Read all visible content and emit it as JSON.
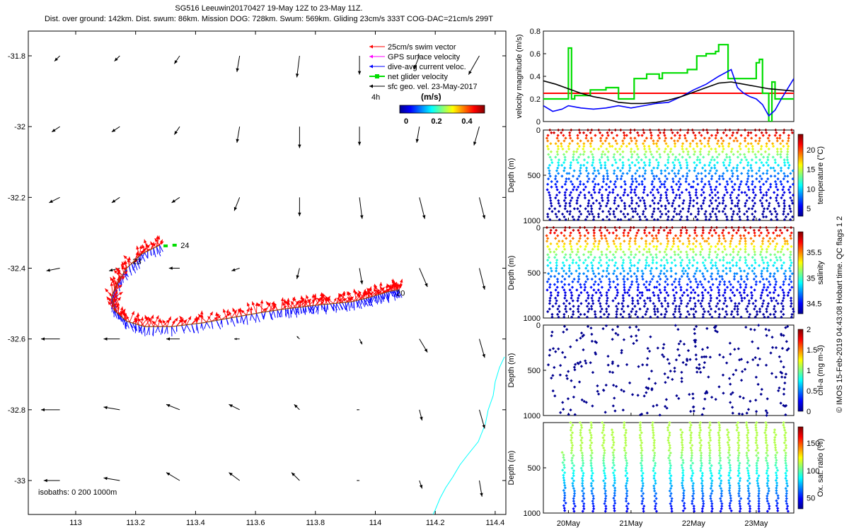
{
  "header": {
    "line1": "SG516 Leeuwin20170427 19-May 12Z to 23-May 11Z.",
    "line2": "Dist. over ground: 142km. Dist. swum: 86km. Mission DOG: 728km. Swum: 569km. Gliding 23cm/s 333T COG-DAC=21cm/s 299T"
  },
  "side_label": "© IMOS 15-Feb-2019 04:43:08 Hobart time. QC flags 1  2",
  "colors": {
    "swim": "#ff0000",
    "gps": "#ff00ff",
    "dac": "#0000ff",
    "netglider": "#00dd00",
    "geo": "#000000",
    "track": "#8b4513",
    "isobath": "#00ffff",
    "refline": "#ff0000"
  },
  "chart_data": [
    {
      "type": "vector-map",
      "title": "Glider track and current vectors",
      "xlabel": "",
      "ylabel": "",
      "xlim": [
        112.84,
        114.44
      ],
      "ylim": [
        -33.1,
        -31.72
      ],
      "xticks": [
        "113",
        "113.2",
        "113.4",
        "113.6",
        "113.8",
        "114",
        "114.2",
        "114.4"
      ],
      "yticks": [
        "-31.8",
        "-32",
        "-32.2",
        "-32.4",
        "-32.6",
        "-32.8",
        "-33"
      ],
      "legend": {
        "entries": [
          "25cm/s swim vector",
          "GPS surface velocity",
          "dive-avg current veloc.",
          "net glider velocity",
          "sfc geo. vel. 23-May-2017"
        ],
        "interval_label": "4h",
        "colorbar_title": "(m/s)",
        "colorbar_ticks": [
          "0",
          "0.2",
          "0.4"
        ]
      },
      "track_labels": [
        {
          "text": "24",
          "lon": 113.35,
          "lat": -32.335
        },
        {
          "text": "23",
          "lon": 113.19,
          "lat": -32.38
        },
        {
          "text": "20",
          "lon": 114.07,
          "lat": -32.47
        }
      ],
      "track": {
        "lon": [
          113.28,
          113.22,
          113.17,
          113.14,
          113.12,
          113.13,
          113.17,
          113.23,
          113.32,
          113.42,
          113.52,
          113.62,
          113.7,
          113.75,
          113.8,
          113.86,
          113.92,
          113.97,
          114.01,
          114.05,
          114.08
        ],
        "lat": [
          -32.335,
          -32.36,
          -32.4,
          -32.44,
          -32.48,
          -32.52,
          -32.55,
          -32.565,
          -32.565,
          -32.555,
          -32.54,
          -32.525,
          -32.515,
          -32.51,
          -32.505,
          -32.5,
          -32.495,
          -32.485,
          -32.475,
          -32.465,
          -32.46
        ]
      },
      "geo_vectors": {
        "lons": [
          112.94,
          113.14,
          113.34,
          113.54,
          113.74,
          113.94,
          114.14,
          114.34
        ],
        "lats": [
          -31.8,
          -32.0,
          -32.2,
          -32.4,
          -32.6,
          -32.8,
          -33.0
        ],
        "u": [
          [
            -0.02,
            -0.02,
            -0.02,
            -0.01,
            -0.01,
            0.0,
            -0.02,
            -0.04
          ],
          [
            -0.03,
            -0.03,
            -0.02,
            -0.01,
            0.0,
            0.0,
            -0.01,
            -0.02
          ],
          [
            -0.04,
            -0.03,
            -0.03,
            -0.02,
            0.0,
            0.01,
            0.02,
            0.02
          ],
          [
            -0.05,
            -0.04,
            -0.04,
            -0.03,
            -0.01,
            0.01,
            0.03,
            0.02
          ],
          [
            -0.07,
            -0.06,
            -0.05,
            -0.02,
            -0.01,
            0.01,
            0.03,
            0.02
          ],
          [
            -0.07,
            -0.06,
            -0.05,
            -0.04,
            -0.02,
            -0.01,
            0.01,
            0.02
          ],
          [
            -0.06,
            -0.06,
            -0.05,
            -0.04,
            -0.03,
            -0.01,
            0.01,
            0.01
          ]
        ],
        "v": [
          [
            -0.02,
            -0.02,
            -0.03,
            -0.06,
            -0.08,
            -0.07,
            -0.05,
            -0.07
          ],
          [
            -0.02,
            -0.02,
            -0.03,
            -0.06,
            -0.08,
            -0.07,
            -0.06,
            -0.07
          ],
          [
            -0.02,
            -0.02,
            -0.02,
            -0.05,
            -0.07,
            -0.08,
            -0.08,
            -0.08
          ],
          [
            -0.01,
            -0.01,
            0.0,
            -0.01,
            -0.04,
            -0.06,
            -0.07,
            -0.08
          ],
          [
            0.0,
            0.0,
            0.0,
            0.0,
            0.01,
            -0.02,
            -0.05,
            -0.07
          ],
          [
            0.0,
            0.01,
            0.02,
            0.02,
            0.02,
            0.0,
            -0.04,
            -0.07
          ],
          [
            0.0,
            0.01,
            0.03,
            0.03,
            0.03,
            0.0,
            -0.03,
            -0.06
          ]
        ]
      },
      "isobath_label": "isobaths: 0   200  1000m"
    },
    {
      "type": "line",
      "ylabel": "velocity magnitude (m/s)",
      "xlim": [
        19.6,
        23.6
      ],
      "ylim": [
        0,
        0.8
      ],
      "yticks": [
        "0",
        "0.2",
        "0.4",
        "0.6",
        "0.8"
      ],
      "reference_line": 0.25,
      "series": [
        {
          "name": "net glider velocity",
          "color": "#00dd00",
          "step": true,
          "x": [
            19.6,
            19.9,
            20.0,
            20.05,
            20.1,
            20.3,
            20.35,
            20.55,
            20.6,
            20.75,
            20.8,
            21.0,
            21.05,
            21.2,
            21.25,
            21.4,
            21.45,
            21.5,
            21.7,
            21.9,
            21.95,
            22.05,
            22.2,
            22.35,
            22.4,
            22.55,
            22.7,
            22.85,
            23.0,
            23.05,
            23.1,
            23.2,
            23.25,
            23.3,
            23.6
          ],
          "y": [
            0.2,
            0.2,
            0.65,
            0.2,
            0.23,
            0.23,
            0.28,
            0.28,
            0.3,
            0.3,
            0.2,
            0.2,
            0.38,
            0.38,
            0.42,
            0.42,
            0.38,
            0.43,
            0.43,
            0.46,
            0.46,
            0.58,
            0.6,
            0.62,
            0.68,
            0.38,
            0.38,
            0.38,
            0.52,
            0.55,
            0.25,
            0.0,
            0.35,
            0.2,
            0.2
          ]
        },
        {
          "name": "dive-avg current",
          "color": "#0000ff",
          "step": false,
          "x": [
            19.6,
            19.75,
            19.9,
            20.0,
            20.2,
            20.4,
            20.6,
            20.8,
            21.0,
            21.2,
            21.4,
            21.6,
            21.8,
            22.0,
            22.2,
            22.4,
            22.6,
            22.7,
            22.8,
            22.9,
            23.0,
            23.1,
            23.2,
            23.3,
            23.4,
            23.6
          ],
          "y": [
            0.14,
            0.09,
            0.11,
            0.14,
            0.12,
            0.11,
            0.12,
            0.14,
            0.12,
            0.14,
            0.16,
            0.17,
            0.22,
            0.28,
            0.33,
            0.4,
            0.46,
            0.3,
            0.25,
            0.22,
            0.2,
            0.15,
            0.05,
            0.1,
            0.2,
            0.38
          ]
        },
        {
          "name": "sfc geo. velocity",
          "color": "#000000",
          "step": false,
          "x": [
            19.6,
            19.8,
            20.0,
            20.2,
            20.4,
            20.6,
            20.8,
            21.0,
            21.2,
            21.4,
            21.6,
            21.8,
            22.0,
            22.2,
            22.4,
            22.6,
            22.8,
            23.0,
            23.2,
            23.4,
            23.6
          ],
          "y": [
            0.36,
            0.33,
            0.29,
            0.25,
            0.22,
            0.2,
            0.17,
            0.16,
            0.16,
            0.17,
            0.19,
            0.22,
            0.26,
            0.3,
            0.34,
            0.35,
            0.33,
            0.31,
            0.29,
            0.28,
            0.27
          ]
        }
      ]
    },
    {
      "type": "scatter",
      "name": "temperature",
      "ylabel": "Depth (m)",
      "clabel": "temperature (°C)",
      "ylim": [
        0,
        1000
      ],
      "yticks": [
        "0",
        "500",
        "1000"
      ],
      "cticks": [
        "5",
        "10",
        "15",
        "20"
      ],
      "clim": [
        3,
        24
      ]
    },
    {
      "type": "scatter",
      "name": "salinity",
      "ylabel": "Depth (m)",
      "clabel": "salinity",
      "ylim": [
        0,
        1000
      ],
      "yticks": [
        "0",
        "500",
        "1000"
      ],
      "cticks": [
        "34.5",
        "35",
        "35.5"
      ],
      "clim": [
        34.3,
        35.9
      ]
    },
    {
      "type": "scatter",
      "name": "chl-a",
      "ylabel": "Depth (m)",
      "clabel": "chl-a (mg m-3)",
      "ylim": [
        0,
        1000
      ],
      "yticks": [
        "0",
        "500",
        "1000"
      ],
      "cticks": [
        "0",
        "0.5",
        "1",
        "1.5",
        "2"
      ],
      "clim": [
        0,
        2
      ]
    },
    {
      "type": "scatter",
      "name": "oxygen",
      "ylabel": "Depth (m)",
      "clabel": "Ox. sat. ratio (%)",
      "ylim": [
        0,
        1000
      ],
      "yticks": [
        "500",
        "1000"
      ],
      "cticks": [
        "50",
        "100",
        "150"
      ],
      "clim": [
        30,
        180
      ],
      "xticks": [
        "20May",
        "21May",
        "22May",
        "23May"
      ]
    }
  ]
}
